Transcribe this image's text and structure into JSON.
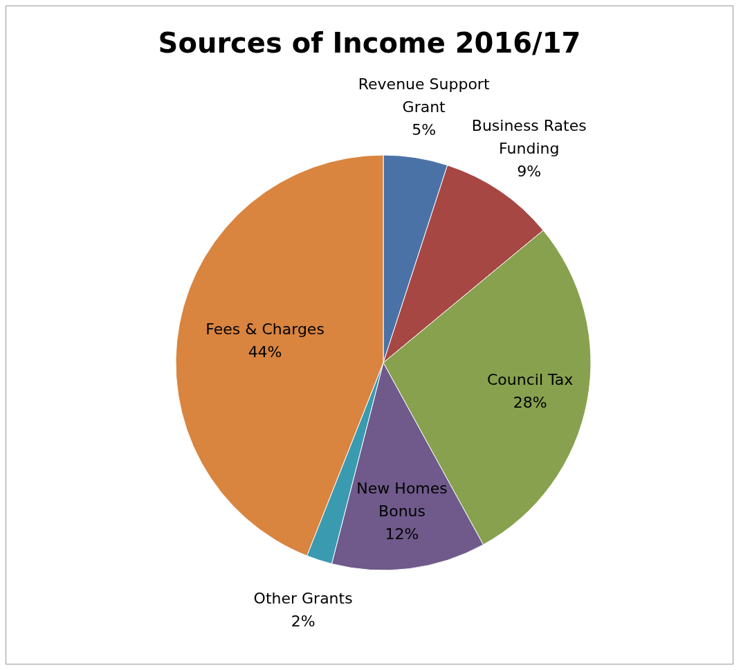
{
  "chart_data": {
    "type": "pie",
    "title": "Sources of Income 2016/17",
    "categories": [
      "Revenue Support Grant",
      "Business Rates Funding",
      "Council Tax",
      "New Homes Bonus",
      "Other Grants",
      "Fees & Charges"
    ],
    "values": [
      5,
      9,
      28,
      12,
      2,
      44
    ],
    "value_labels": [
      "5%",
      "9%",
      "28%",
      "12%",
      "2%",
      "44%"
    ],
    "colors": [
      "#4a72a6",
      "#a64744",
      "#87a14e",
      "#6f5a8b",
      "#3a9ab0",
      "#d9843f"
    ],
    "legend": false
  }
}
